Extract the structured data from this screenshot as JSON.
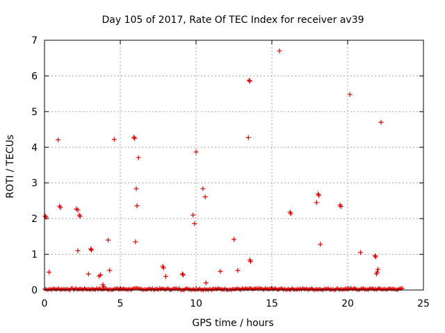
{
  "chart_data": {
    "type": "scatter",
    "title": "Day 105 of 2017, Rate Of TEC Index for receiver av39",
    "xlabel": "GPS time / hours",
    "ylabel": "ROTI / TECUs",
    "xlim": [
      0,
      25
    ],
    "ylim": [
      0,
      7
    ],
    "xticks": [
      "0",
      "5",
      "10",
      "15",
      "20",
      "25"
    ],
    "yticks": [
      "0",
      "1",
      "2",
      "3",
      "4",
      "5",
      "6",
      "7"
    ],
    "grid": true,
    "marker": "plus",
    "color": "#e00000",
    "baseline": {
      "x_start": 0.0,
      "x_end": 23.6,
      "step": 0.08,
      "y_max": 0.05
    },
    "points": [
      [
        0.05,
        2.07
      ],
      [
        0.1,
        2.04
      ],
      [
        0.3,
        0.5
      ],
      [
        0.9,
        4.21
      ],
      [
        1.0,
        2.35
      ],
      [
        1.05,
        2.31
      ],
      [
        2.1,
        2.27
      ],
      [
        2.2,
        2.24
      ],
      [
        2.3,
        2.1
      ],
      [
        2.35,
        2.06
      ],
      [
        2.2,
        1.1
      ],
      [
        2.9,
        0.45
      ],
      [
        3.05,
        1.15
      ],
      [
        3.1,
        1.12
      ],
      [
        3.6,
        0.39
      ],
      [
        3.7,
        0.42
      ],
      [
        3.85,
        0.15
      ],
      [
        3.9,
        0.1
      ],
      [
        4.2,
        1.4
      ],
      [
        4.3,
        0.55
      ],
      [
        4.6,
        4.22
      ],
      [
        5.9,
        4.28
      ],
      [
        5.95,
        4.25
      ],
      [
        6.0,
        1.35
      ],
      [
        6.05,
        2.84
      ],
      [
        6.1,
        2.36
      ],
      [
        6.2,
        3.71
      ],
      [
        7.8,
        0.66
      ],
      [
        7.85,
        0.62
      ],
      [
        8.0,
        0.38
      ],
      [
        9.1,
        0.45
      ],
      [
        9.15,
        0.42
      ],
      [
        9.8,
        2.1
      ],
      [
        9.9,
        1.86
      ],
      [
        10.0,
        3.87
      ],
      [
        10.45,
        2.84
      ],
      [
        10.6,
        2.61
      ],
      [
        10.65,
        0.2
      ],
      [
        11.6,
        0.52
      ],
      [
        12.5,
        1.42
      ],
      [
        12.75,
        0.55
      ],
      [
        13.45,
        4.27
      ],
      [
        13.5,
        5.88
      ],
      [
        13.55,
        5.85
      ],
      [
        13.55,
        0.84
      ],
      [
        13.6,
        0.8
      ],
      [
        15.5,
        6.7
      ],
      [
        16.2,
        2.18
      ],
      [
        16.25,
        2.14
      ],
      [
        17.95,
        2.45
      ],
      [
        18.05,
        2.69
      ],
      [
        18.1,
        2.65
      ],
      [
        18.2,
        1.28
      ],
      [
        19.5,
        2.38
      ],
      [
        19.55,
        2.34
      ],
      [
        20.15,
        5.48
      ],
      [
        20.85,
        1.05
      ],
      [
        21.8,
        0.96
      ],
      [
        21.85,
        0.93
      ],
      [
        21.9,
        0.45
      ],
      [
        21.95,
        0.5
      ],
      [
        22.0,
        0.58
      ],
      [
        22.2,
        4.7
      ]
    ]
  }
}
